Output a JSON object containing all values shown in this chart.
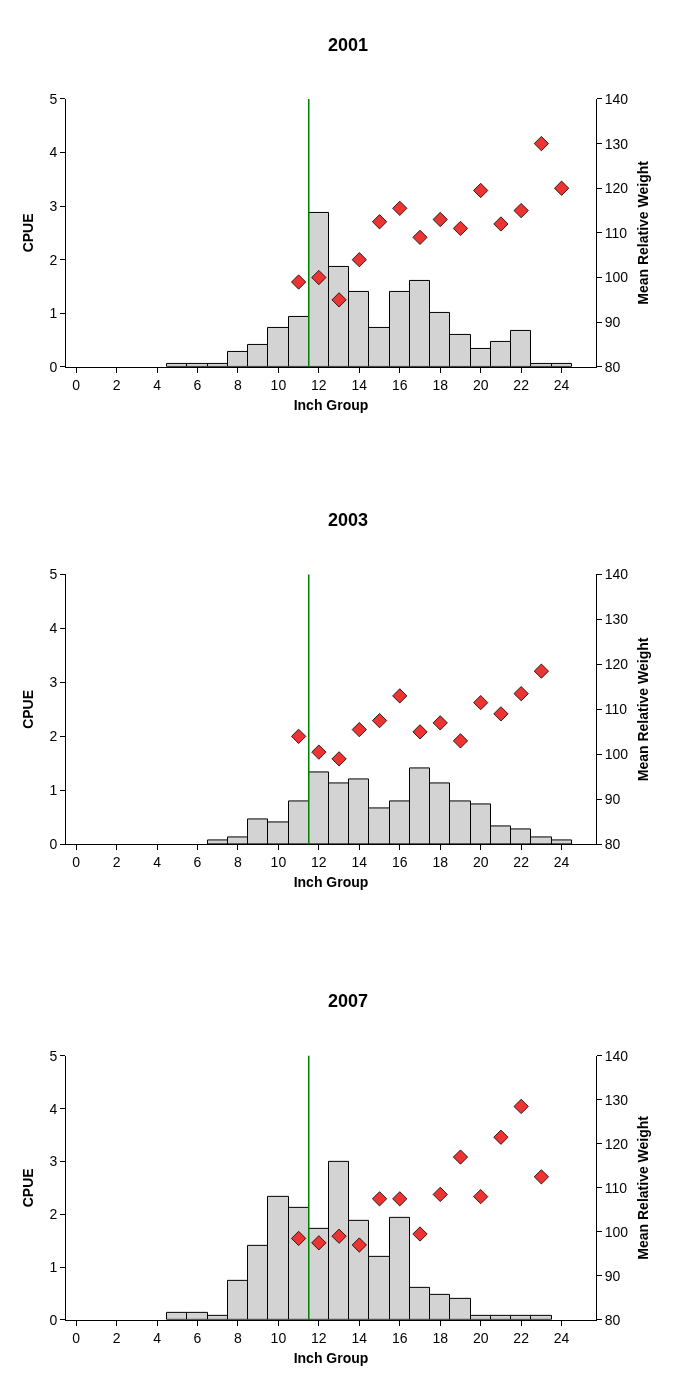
{
  "chart_data": [
    {
      "type": "bar",
      "title": "2001",
      "xlabel": "Inch Group",
      "ylabel": "CPUE",
      "y2label": "Mean Relative Weight",
      "xlim": [
        -0.5,
        25.7
      ],
      "xticks": [
        0,
        2,
        4,
        6,
        8,
        10,
        12,
        14,
        16,
        18,
        20,
        22,
        24
      ],
      "ylim": [
        0,
        5
      ],
      "yticks": [
        0,
        1,
        2,
        3,
        4,
        5
      ],
      "y2lim": [
        80,
        140
      ],
      "y2ticks": [
        80,
        90,
        100,
        110,
        120,
        130,
        140
      ],
      "ref_lines": [
        {
          "axis": "x",
          "value": 11.5,
          "color": "#008000"
        }
      ],
      "series": [
        {
          "color": "#d3d3d3",
          "x": [
            5,
            6,
            7,
            8,
            9,
            10,
            11,
            12,
            13,
            14,
            15,
            16,
            17,
            18,
            19,
            20,
            21,
            22,
            23,
            24
          ],
          "values": [
            0.05,
            0.05,
            0.05,
            0.27,
            0.4,
            0.73,
            0.93,
            2.87,
            1.87,
            1.4,
            0.73,
            1.4,
            1.6,
            1.0,
            0.6,
            0.33,
            0.47,
            0.67,
            0.05,
            0.05
          ]
        },
        {
          "type": "scatter",
          "axis": "y2",
          "marker": "diamond",
          "color": "#ee3333",
          "x": [
            11,
            12,
            13,
            14,
            15,
            16,
            17,
            18,
            19,
            20,
            21,
            22,
            23,
            24
          ],
          "values": [
            99,
            100,
            95,
            104,
            112.5,
            115.5,
            109,
            113,
            111,
            119.5,
            112,
            115,
            130,
            120
          ]
        }
      ]
    },
    {
      "type": "bar",
      "title": "2003",
      "xlabel": "Inch Group",
      "ylabel": "CPUE",
      "y2label": "Mean Relative Weight",
      "xlim": [
        -0.5,
        25.7
      ],
      "xticks": [
        0,
        2,
        4,
        6,
        8,
        10,
        12,
        14,
        16,
        18,
        20,
        22,
        24
      ],
      "ylim": [
        0,
        5
      ],
      "yticks": [
        0,
        1,
        2,
        3,
        4,
        5
      ],
      "y2lim": [
        80,
        140
      ],
      "y2ticks": [
        80,
        90,
        100,
        110,
        120,
        130,
        140
      ],
      "ref_lines": [
        {
          "axis": "x",
          "value": 11.5,
          "color": "#008000"
        }
      ],
      "series": [
        {
          "color": "#d3d3d3",
          "x": [
            7,
            8,
            9,
            10,
            11,
            12,
            13,
            14,
            15,
            16,
            17,
            18,
            19,
            20,
            21,
            22,
            23,
            24
          ],
          "values": [
            0.07,
            0.13,
            0.47,
            0.4,
            0.8,
            1.33,
            1.13,
            1.2,
            0.67,
            0.8,
            1.4,
            1.13,
            0.8,
            0.73,
            0.33,
            0.27,
            0.13,
            0.07
          ]
        },
        {
          "type": "scatter",
          "axis": "y2",
          "marker": "diamond",
          "color": "#ee3333",
          "x": [
            11,
            12,
            13,
            14,
            15,
            16,
            17,
            18,
            19,
            20,
            21,
            22,
            23
          ],
          "values": [
            104,
            100.5,
            99,
            105.5,
            107.5,
            113,
            105,
            107,
            103,
            111.5,
            109,
            113.5,
            118.5
          ]
        }
      ]
    },
    {
      "type": "bar",
      "title": "2007",
      "xlabel": "Inch Group",
      "ylabel": "CPUE",
      "y2label": "Mean Relative Weight",
      "xlim": [
        -0.5,
        25.7
      ],
      "xticks": [
        0,
        2,
        4,
        6,
        8,
        10,
        12,
        14,
        16,
        18,
        20,
        22,
        24
      ],
      "ylim": [
        0,
        5
      ],
      "yticks": [
        0,
        1,
        2,
        3,
        4,
        5
      ],
      "y2lim": [
        80,
        140
      ],
      "y2ticks": [
        80,
        90,
        100,
        110,
        120,
        130,
        140
      ],
      "ref_lines": [
        {
          "axis": "x",
          "value": 11.5,
          "color": "#008000"
        }
      ],
      "series": [
        {
          "color": "#d3d3d3",
          "x": [
            5,
            6,
            7,
            8,
            9,
            10,
            11,
            12,
            13,
            14,
            15,
            16,
            17,
            18,
            19,
            20,
            21,
            22,
            23
          ],
          "values": [
            0.13,
            0.13,
            0.07,
            0.73,
            1.4,
            2.33,
            2.13,
            1.73,
            3.0,
            1.87,
            1.2,
            1.93,
            0.6,
            0.47,
            0.4,
            0.07,
            0.07,
            0.07,
            0.07
          ]
        },
        {
          "type": "scatter",
          "axis": "y2",
          "marker": "diamond",
          "color": "#ee3333",
          "x": [
            11,
            12,
            13,
            14,
            15,
            16,
            17,
            18,
            19,
            20,
            21,
            22,
            23
          ],
          "values": [
            98.5,
            97.5,
            99,
            97,
            107.5,
            107.5,
            99.5,
            108.5,
            117,
            108,
            121.5,
            128.5,
            112.5
          ]
        }
      ]
    }
  ]
}
